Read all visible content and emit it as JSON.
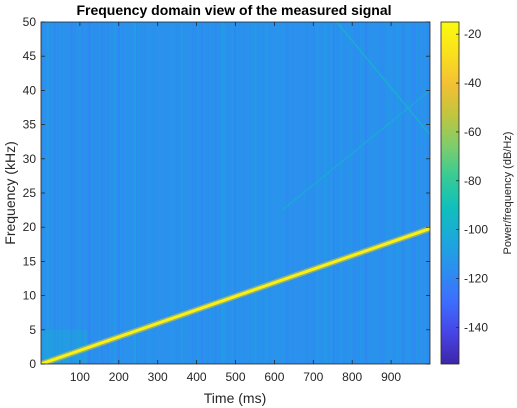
{
  "chart_data": {
    "type": "heatmap",
    "title": "Frequency domain view of the measured signal",
    "xlabel": "Time (ms)",
    "ylabel": "Frequency (kHz)",
    "xlim": [
      0,
      1000
    ],
    "ylim": [
      0,
      50
    ],
    "xticks": [
      100,
      200,
      300,
      400,
      500,
      600,
      700,
      800,
      900
    ],
    "yticks": [
      0,
      5,
      10,
      15,
      20,
      25,
      30,
      35,
      40,
      45,
      50
    ],
    "colorbar": {
      "label": "Power/frequency (dB/Hz)",
      "range": [
        -155,
        -15
      ],
      "ticks": [
        -20,
        -40,
        -60,
        -80,
        -100,
        -120,
        -140
      ],
      "colors": [
        "#3e26a8",
        "#4744e6",
        "#3d6dfe",
        "#2c8ef0",
        "#1ba8dc",
        "#10bfbd",
        "#35cb96",
        "#7dcd6c",
        "#c0c53f",
        "#f4c033",
        "#fae01d",
        "#f9fb0e"
      ]
    },
    "background_level_db": -115,
    "series": [
      {
        "type": "chirp",
        "x": [
          0,
          1000
        ],
        "y": [
          0,
          19.8
        ],
        "level_db": -20
      },
      {
        "type": "faint-line",
        "x": [
          760,
          1000
        ],
        "y": [
          50,
          33.5
        ],
        "level_db": -95
      },
      {
        "type": "faint-line",
        "x": [
          620,
          1000
        ],
        "y": [
          22.5,
          40
        ],
        "level_db": -100
      }
    ]
  }
}
